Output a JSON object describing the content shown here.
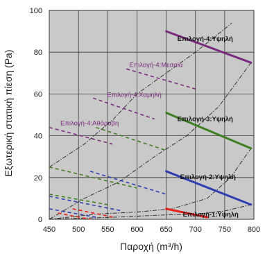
{
  "chart_data": {
    "type": "line",
    "title": "",
    "xlabel": "Παροχή (m³/h)",
    "ylabel": "Εξωτερική στατική πίεση (Pa)",
    "xlim": [
      450,
      800
    ],
    "ylim": [
      0,
      100
    ],
    "x_ticks": [
      450,
      500,
      550,
      600,
      650,
      700,
      750,
      800
    ],
    "y_ticks": [
      0,
      20,
      40,
      60,
      80,
      100
    ],
    "grid": true,
    "plot_background": "#c9c9c9",
    "operating_series": [
      {
        "name": "Επιλογή-4:Υψηλή",
        "color": "#7a2a7e",
        "points": [
          [
            650,
            90
          ],
          [
            795,
            75
          ]
        ]
      },
      {
        "name": "Επιλογή-3:Υψηλή",
        "color": "#3f7f24",
        "points": [
          [
            650,
            51
          ],
          [
            795,
            34
          ]
        ]
      },
      {
        "name": "Επιλογή-2:Υψηλή",
        "color": "#2f3fb0",
        "points": [
          [
            650,
            23
          ],
          [
            795,
            7
          ]
        ]
      },
      {
        "name": "Επιλογή-1:Υψηλή",
        "color": "#e8211a",
        "points": [
          [
            650,
            5
          ],
          [
            720,
            1
          ]
        ]
      }
    ],
    "lower_series": [
      {
        "name": "Επιλογή-4:Μεσαία",
        "color": "#7a2a7e",
        "points": [
          [
            582,
            72
          ],
          [
            705,
            62
          ]
        ]
      },
      {
        "name": "Επιλογή-4:Χαμηλή",
        "color": "#7a2a7e",
        "points": [
          [
            525,
            58
          ],
          [
            630,
            48
          ]
        ]
      },
      {
        "name": "Επιλογή-4:Αθόρυβη",
        "color": "#7a2a7e",
        "points": [
          [
            450,
            44
          ],
          [
            558,
            36
          ]
        ]
      },
      {
        "name": "",
        "color": "#3f7f24",
        "points": [
          [
            530,
            44
          ],
          [
            650,
            33
          ]
        ]
      },
      {
        "name": "",
        "color": "#3f7f24",
        "points": [
          [
            450,
            25
          ],
          [
            600,
            15
          ]
        ]
      },
      {
        "name": "",
        "color": "#3f7f24",
        "points": [
          [
            450,
            12
          ],
          [
            550,
            7
          ]
        ]
      },
      {
        "name": "",
        "color": "#2f3fb0",
        "points": [
          [
            520,
            23
          ],
          [
            650,
            12
          ]
        ]
      },
      {
        "name": "",
        "color": "#2f3fb0",
        "points": [
          [
            450,
            11
          ],
          [
            575,
            4
          ]
        ]
      },
      {
        "name": "",
        "color": "#2f3fb0",
        "points": [
          [
            450,
            5
          ],
          [
            530,
            1
          ]
        ]
      },
      {
        "name": "",
        "color": "#e8211a",
        "points": [
          [
            490,
            5
          ],
          [
            560,
            1
          ]
        ]
      },
      {
        "name": "",
        "color": "#e8211a",
        "points": [
          [
            465,
            3
          ],
          [
            520,
            0
          ]
        ]
      }
    ],
    "boundary_lines": [
      {
        "color": "#222222",
        "points": [
          [
            450,
            25
          ],
          [
            510,
            36
          ],
          [
            560,
            48
          ],
          [
            600,
            60
          ],
          [
            650,
            70
          ],
          [
            700,
            80
          ],
          [
            745,
            90
          ],
          [
            762,
            94
          ]
        ]
      },
      {
        "color": "#222222",
        "points": [
          [
            450,
            0
          ],
          [
            510,
            10
          ],
          [
            570,
            18
          ],
          [
            630,
            30
          ],
          [
            685,
            40
          ],
          [
            740,
            54
          ],
          [
            795,
            75
          ]
        ]
      },
      {
        "color": "#222222",
        "points": [
          [
            450,
            0
          ],
          [
            530,
            2.5
          ],
          [
            600,
            3.5
          ],
          [
            660,
            5
          ],
          [
            720,
            10
          ],
          [
            760,
            20
          ],
          [
            795,
            34
          ]
        ]
      },
      {
        "color": "#222222",
        "points": [
          [
            450,
            0
          ],
          [
            560,
            1
          ],
          [
            640,
            2
          ],
          [
            700,
            2.5
          ],
          [
            750,
            4
          ],
          [
            795,
            7
          ]
        ]
      }
    ]
  }
}
